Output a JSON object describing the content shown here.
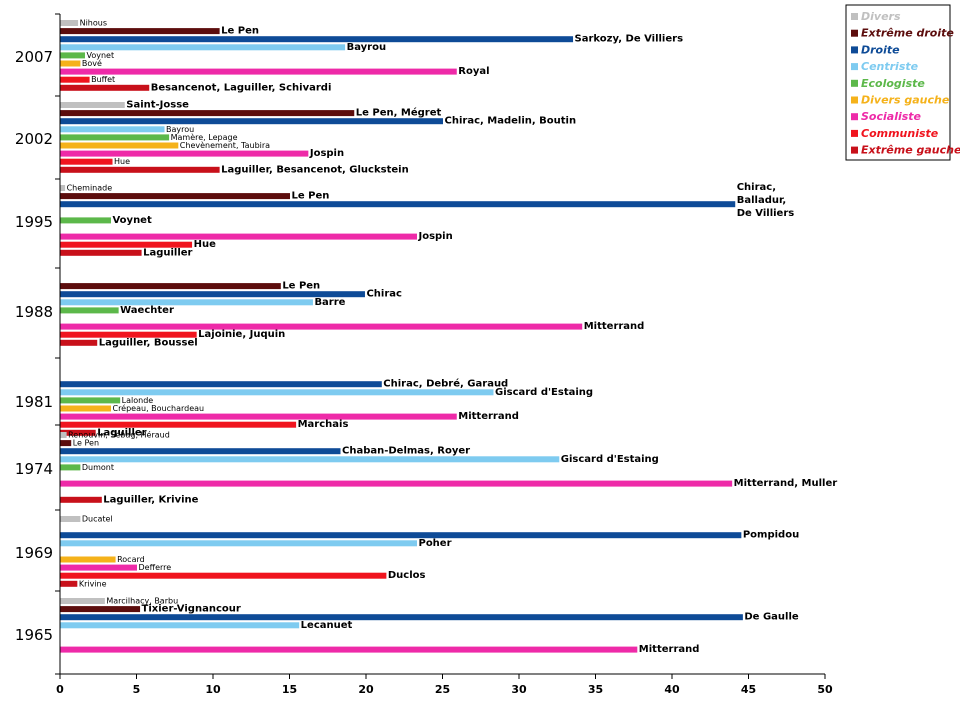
{
  "chart_data": {
    "type": "bar",
    "orientation": "horizontal",
    "title": "",
    "xlabel": "",
    "ylabel": "",
    "xlim": [
      0,
      50
    ],
    "x_ticks": [
      0,
      5,
      10,
      15,
      20,
      25,
      30,
      35,
      40,
      45,
      50
    ],
    "grid": false,
    "legend_position": "top-right",
    "legend": [
      {
        "key": "divers",
        "label": "Divers",
        "color": "#c0c0c0"
      },
      {
        "key": "extreme_droite",
        "label": "Extrême droite",
        "color": "#5c0d0d"
      },
      {
        "key": "droite",
        "label": "Droite",
        "color": "#0e4b97"
      },
      {
        "key": "centriste",
        "label": "Centriste",
        "color": "#7ecbf0"
      },
      {
        "key": "ecologiste",
        "label": "Ecologiste",
        "color": "#5cb84a"
      },
      {
        "key": "divers_gauche",
        "label": "Divers gauche",
        "color": "#f5b21a"
      },
      {
        "key": "socialiste",
        "label": "Socialiste",
        "color": "#ee2aa8"
      },
      {
        "key": "communiste",
        "label": "Communiste",
        "color": "#f0141e"
      },
      {
        "key": "extreme_gauche",
        "label": "Extrême gauche",
        "color": "#c8101a"
      }
    ],
    "groups": [
      {
        "year": "2007",
        "bars": [
          {
            "category": "divers",
            "value": 1.15,
            "label": "Nihous",
            "big": false
          },
          {
            "category": "extreme_droite",
            "value": 10.4,
            "label": "Le Pen",
            "big": true
          },
          {
            "category": "droite",
            "value": 33.5,
            "label": "Sarkozy, De Villiers",
            "big": true
          },
          {
            "category": "centriste",
            "value": 18.6,
            "label": "Bayrou",
            "big": true
          },
          {
            "category": "ecologiste",
            "value": 1.6,
            "label": "Voynet",
            "big": false
          },
          {
            "category": "divers_gauche",
            "value": 1.3,
            "label": "Bové",
            "big": false
          },
          {
            "category": "socialiste",
            "value": 25.9,
            "label": "Royal",
            "big": true
          },
          {
            "category": "communiste",
            "value": 1.9,
            "label": "Buffet",
            "big": false
          },
          {
            "category": "extreme_gauche",
            "value": 5.8,
            "label": "Besancenot, Laguiller, Schivardi",
            "big": true
          }
        ]
      },
      {
        "year": "2002",
        "bars": [
          {
            "category": "divers",
            "value": 4.2,
            "label": "Saint-Josse",
            "big": true
          },
          {
            "category": "extreme_droite",
            "value": 19.2,
            "label": "Le Pen, Mégret",
            "big": true
          },
          {
            "category": "droite",
            "value": 25.0,
            "label": "Chirac, Madelin, Boutin",
            "big": true
          },
          {
            "category": "centriste",
            "value": 6.8,
            "label": "Bayrou",
            "big": false
          },
          {
            "category": "ecologiste",
            "value": 7.1,
            "label": "Mamère, Lepage",
            "big": false
          },
          {
            "category": "divers_gauche",
            "value": 7.7,
            "label": "Chevènement, Taubira",
            "big": false
          },
          {
            "category": "socialiste",
            "value": 16.2,
            "label": "Jospin",
            "big": true
          },
          {
            "category": "communiste",
            "value": 3.4,
            "label": "Hue",
            "big": false
          },
          {
            "category": "extreme_gauche",
            "value": 10.4,
            "label": "Laguiller, Besancenot, Gluckstein",
            "big": true
          }
        ]
      },
      {
        "year": "1995",
        "bars": [
          {
            "category": "divers",
            "value": 0.3,
            "label": "Cheminade",
            "big": false
          },
          {
            "category": "extreme_droite",
            "value": 15.0,
            "label": "Le Pen",
            "big": true
          },
          {
            "category": "droite",
            "value": 44.1,
            "label": "Chirac, Balladur, De Villiers",
            "label_lines": [
              "Chirac,",
              "Balladur,",
              "De Villiers"
            ],
            "big": true
          },
          {
            "category": "ecologiste",
            "value": 3.3,
            "label": "Voynet",
            "big": true
          },
          {
            "category": "socialiste",
            "value": 23.3,
            "label": "Jospin",
            "big": true
          },
          {
            "category": "communiste",
            "value": 8.6,
            "label": "Hue",
            "big": true
          },
          {
            "category": "extreme_gauche",
            "value": 5.3,
            "label": "Laguiller",
            "big": true
          }
        ]
      },
      {
        "year": "1988",
        "bars": [
          {
            "category": "extreme_droite",
            "value": 14.4,
            "label": "Le Pen",
            "big": true
          },
          {
            "category": "droite",
            "value": 19.9,
            "label": "Chirac",
            "big": true
          },
          {
            "category": "centriste",
            "value": 16.5,
            "label": "Barre",
            "big": true
          },
          {
            "category": "ecologiste",
            "value": 3.8,
            "label": "Waechter",
            "big": true
          },
          {
            "category": "socialiste",
            "value": 34.1,
            "label": "Mitterrand",
            "big": true
          },
          {
            "category": "communiste",
            "value": 8.9,
            "label": "Lajoinie, Juquin",
            "big": true
          },
          {
            "category": "extreme_gauche",
            "value": 2.4,
            "label": "Laguiller, Boussel",
            "big": true
          }
        ]
      },
      {
        "year": "1981",
        "bars": [
          {
            "category": "droite",
            "value": 21.0,
            "label": "Chirac, Debré, Garaud",
            "big": true
          },
          {
            "category": "centriste",
            "value": 28.3,
            "label": "Giscard d'Estaing",
            "big": true
          },
          {
            "category": "ecologiste",
            "value": 3.9,
            "label": "Lalonde",
            "big": false
          },
          {
            "category": "divers_gauche",
            "value": 3.3,
            "label": "Crépeau, Bouchardeau",
            "big": false
          },
          {
            "category": "socialiste",
            "value": 25.9,
            "label": "Mitterrand",
            "big": true
          },
          {
            "category": "communiste",
            "value": 15.4,
            "label": "Marchais",
            "big": true
          },
          {
            "category": "extreme_gauche",
            "value": 2.3,
            "label": "Laguiller",
            "big": true
          }
        ]
      },
      {
        "year": "1974",
        "bars": [
          {
            "category": "divers",
            "value": 0.4,
            "label": "Renouvin, Sébag, Héraud",
            "big": false
          },
          {
            "category": "extreme_droite",
            "value": 0.7,
            "label": "Le Pen",
            "big": false
          },
          {
            "category": "droite",
            "value": 18.3,
            "label": "Chaban-Delmas, Royer",
            "big": true
          },
          {
            "category": "centriste",
            "value": 32.6,
            "label": "Giscard d'Estaing",
            "big": true
          },
          {
            "category": "ecologiste",
            "value": 1.3,
            "label": "Dumont",
            "big": false
          },
          {
            "category": "socialiste",
            "value": 43.9,
            "label": "Mitterrand, Muller",
            "big": true
          },
          {
            "category": "extreme_gauche",
            "value": 2.7,
            "label": "Laguiller, Krivine",
            "big": true
          }
        ]
      },
      {
        "year": "1969",
        "bars": [
          {
            "category": "divers",
            "value": 1.3,
            "label": "Ducatel",
            "big": false
          },
          {
            "category": "droite",
            "value": 44.5,
            "label": "Pompidou",
            "big": true
          },
          {
            "category": "centriste",
            "value": 23.3,
            "label": "Poher",
            "big": true
          },
          {
            "category": "divers_gauche",
            "value": 3.6,
            "label": "Rocard",
            "big": false
          },
          {
            "category": "socialiste",
            "value": 5.0,
            "label": "Defferre",
            "big": false
          },
          {
            "category": "communiste",
            "value": 21.3,
            "label": "Duclos",
            "big": true
          },
          {
            "category": "extreme_gauche",
            "value": 1.1,
            "label": "Krivine",
            "big": false
          }
        ]
      },
      {
        "year": "1965",
        "bars": [
          {
            "category": "divers",
            "value": 2.9,
            "label": "Marcilhacy, Barbu",
            "big": false
          },
          {
            "category": "extreme_droite",
            "value": 5.2,
            "label": "Tixier-Vignancour",
            "big": true
          },
          {
            "category": "droite",
            "value": 44.6,
            "label": "De Gaulle",
            "big": true
          },
          {
            "category": "centriste",
            "value": 15.6,
            "label": "Lecanuet",
            "big": true
          },
          {
            "category": "socialiste",
            "value": 37.7,
            "label": "Mitterrand",
            "big": true
          }
        ]
      }
    ]
  }
}
